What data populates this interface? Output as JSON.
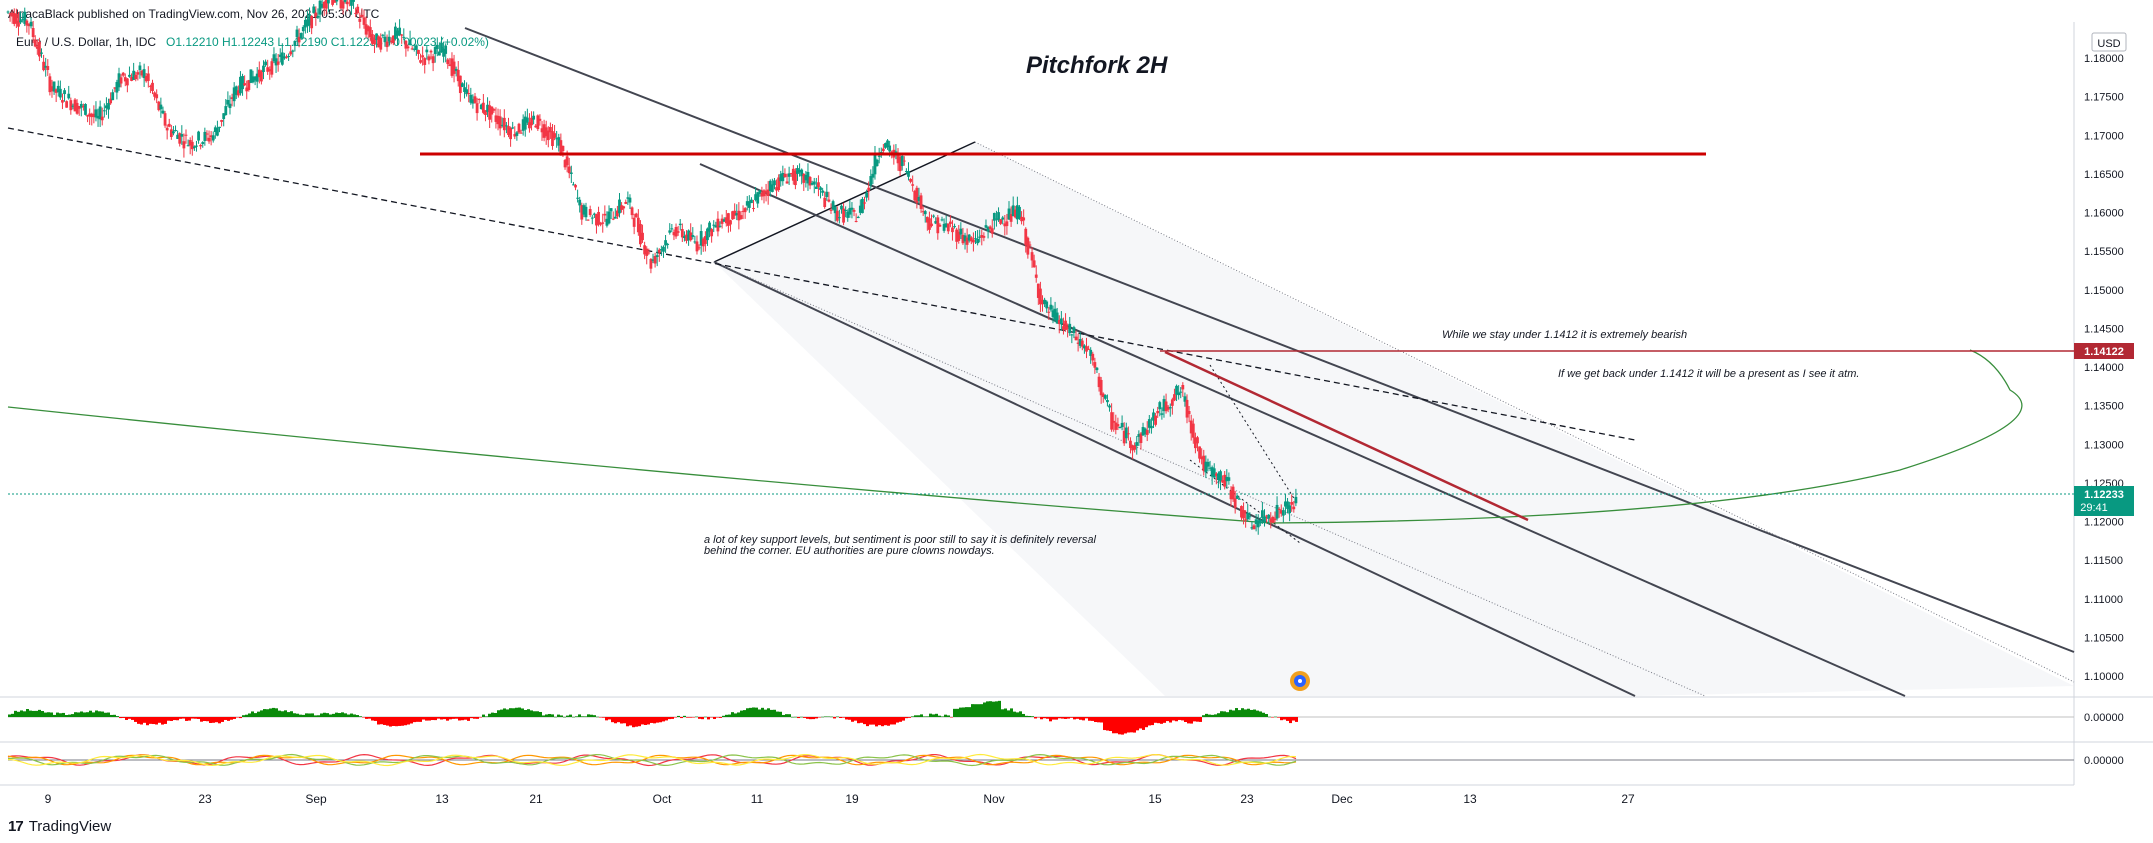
{
  "header": {
    "published": "AlpacaBlack published on TradingView.com, Nov 26, 2021 05:30 UTC",
    "symbol_title": "Euro / U.S. Dollar, 1h, IDC",
    "ohlc": "O1.12210 H1.12243 L1.12190 C1.12233 +0.00023 (+0.02%)"
  },
  "chart_data": {
    "type": "line",
    "title": "Pitchfork 2H",
    "currency": "USD",
    "xlabel": "",
    "ylabel": "",
    "y_ticks": [
      "1.18000",
      "1.17500",
      "1.17000",
      "1.16500",
      "1.16000",
      "1.15500",
      "1.15000",
      "1.14500",
      "1.14000",
      "1.13500",
      "1.13000",
      "1.12500",
      "1.12000",
      "1.11500",
      "1.11000",
      "1.10500",
      "1.10000"
    ],
    "ylim": [
      1.0965,
      1.1845
    ],
    "x_ticks": [
      "9",
      "23",
      "Sep",
      "13",
      "21",
      "Oct",
      "11",
      "19",
      "Nov",
      "15",
      "23",
      "Dec",
      "13",
      "27"
    ],
    "price_series": {
      "name": "EURUSD",
      "points": [
        [
          "Aug 2",
          1.186
        ],
        [
          "Aug 4",
          1.1845
        ],
        [
          "Aug 6",
          1.176
        ],
        [
          "Aug 9",
          1.174
        ],
        [
          "Aug 11",
          1.172
        ],
        [
          "Aug 13",
          1.1775
        ],
        [
          "Aug 16",
          1.178
        ],
        [
          "Aug 18",
          1.171
        ],
        [
          "Aug 20",
          1.169
        ],
        [
          "Aug 23",
          1.17
        ],
        [
          "Aug 25",
          1.176
        ],
        [
          "Aug 27",
          1.178
        ],
        [
          "Aug 30",
          1.18
        ],
        [
          "Sep 1",
          1.184
        ],
        [
          "Sep 3",
          1.188
        ],
        [
          "Sep 6",
          1.187
        ],
        [
          "Sep 8",
          1.182
        ],
        [
          "Sep 10",
          1.183
        ],
        [
          "Sep 13",
          1.18
        ],
        [
          "Sep 15",
          1.181
        ],
        [
          "Sep 17",
          1.175
        ],
        [
          "Sep 20",
          1.173
        ],
        [
          "Sep 22",
          1.1705
        ],
        [
          "Sep 24",
          1.172
        ],
        [
          "Sep 27",
          1.169
        ],
        [
          "Sep 29",
          1.16
        ],
        [
          "Oct 1",
          1.159
        ],
        [
          "Oct 4",
          1.1615
        ],
        [
          "Oct 6",
          1.1535
        ],
        [
          "Oct 8",
          1.158
        ],
        [
          "Oct 11",
          1.156
        ],
        [
          "Oct 13",
          1.159
        ],
        [
          "Oct 15",
          1.16
        ],
        [
          "Oct 18",
          1.163
        ],
        [
          "Oct 20",
          1.165
        ],
        [
          "Oct 22",
          1.164
        ],
        [
          "Oct 25",
          1.16
        ],
        [
          "Oct 27",
          1.1595
        ],
        [
          "Oct 28",
          1.169
        ],
        [
          "Oct 29",
          1.166
        ],
        [
          "Nov 1",
          1.159
        ],
        [
          "Nov 3",
          1.158
        ],
        [
          "Nov 5",
          1.156
        ],
        [
          "Nov 8",
          1.159
        ],
        [
          "Nov 10",
          1.16
        ],
        [
          "Nov 11",
          1.148
        ],
        [
          "Nov 12",
          1.145
        ],
        [
          "Nov 15",
          1.142
        ],
        [
          "Nov 16",
          1.133
        ],
        [
          "Nov 17",
          1.13
        ],
        [
          "Nov 18",
          1.134
        ],
        [
          "Nov 19",
          1.137
        ],
        [
          "Nov 22",
          1.127
        ],
        [
          "Nov 23",
          1.125
        ],
        [
          "Nov 24",
          1.1195
        ],
        [
          "Nov 25",
          1.121
        ],
        [
          "Nov 26",
          1.1223
        ]
      ]
    },
    "levels": [
      {
        "label": "1.14122",
        "value": 1.14122,
        "color": "#b22833"
      },
      {
        "label": "1.12233",
        "value": 1.12233,
        "color": "#089981",
        "countdown": "29:41"
      },
      {
        "value": 1.1673,
        "color": "#cc0000"
      }
    ],
    "annotations": [
      {
        "text": "While we stay under 1.1412 it is extremely bearish"
      },
      {
        "text": "If we get back under 1.1412 it will be a present as I see it atm."
      },
      {
        "text": "a lot of key support levels, but sentiment is poor still to say it is definitely reversal"
      },
      {
        "text": "behind the corner. EU authorities are pure clowns nowdays."
      }
    ],
    "oscillators": [
      {
        "name": "histogram",
        "zero_label": "0.00000",
        "pos_color": "#0a8a0a",
        "neg_color": "#ff0000"
      },
      {
        "name": "lines",
        "zero_label": "0.00000"
      }
    ],
    "grid": false
  },
  "footer": {
    "brand": "TradingView",
    "brand_mark": "17"
  }
}
